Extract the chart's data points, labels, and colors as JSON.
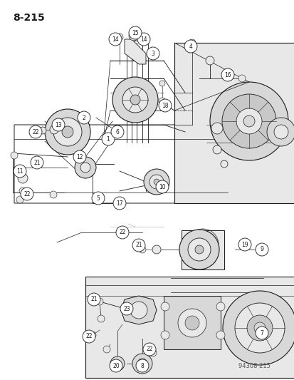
{
  "page_number": "8-215",
  "catalog_number": "94308 215",
  "bg": "#ffffff",
  "lc": "#1a1a1a",
  "gray1": "#c8c8c8",
  "gray2": "#d8d8d8",
  "gray3": "#e8e8e8",
  "gray4": "#b0b0b0",
  "figsize": [
    4.14,
    5.33
  ],
  "dpi": 100
}
